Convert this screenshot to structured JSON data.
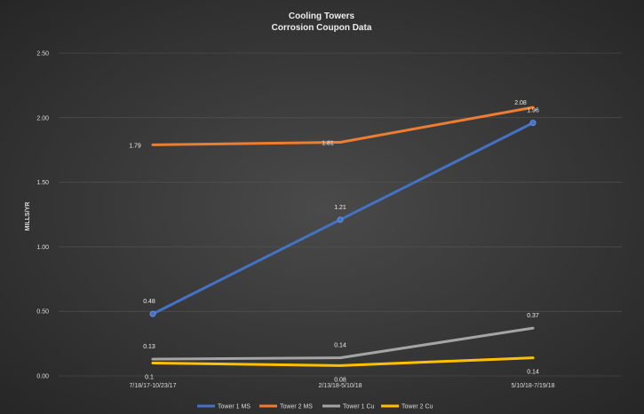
{
  "chart_data": {
    "type": "line",
    "title": "Cooling Towers",
    "subtitle": "Corrosion Coupon Data",
    "xlabel": "",
    "ylabel": "MILLS/YR",
    "categories": [
      "7/18/17-10/23/17",
      "2/13/18-5/10/18",
      "5/10/18-7/19/18"
    ],
    "ylim": [
      0,
      2.5
    ],
    "yticks": [
      "0.00",
      "0.50",
      "1.00",
      "1.50",
      "2.00",
      "2.50"
    ],
    "grid": true,
    "legend_position": "bottom",
    "series": [
      {
        "name": "Tower 1 MS",
        "color": "#4472c4",
        "values": [
          0.48,
          1.21,
          1.96
        ],
        "labels": [
          "0.48",
          "1.21",
          "1.96"
        ],
        "markers": true
      },
      {
        "name": "Tower 2 MS",
        "color": "#ed7d31",
        "values": [
          1.79,
          1.81,
          2.08
        ],
        "labels": [
          "1.79",
          "1.81",
          "2.08"
        ],
        "markers": false
      },
      {
        "name": "Tower 1 Cu",
        "color": "#a5a5a5",
        "values": [
          0.13,
          0.14,
          0.37
        ],
        "labels": [
          "0.13",
          "0.14",
          "0.37"
        ],
        "markers": false
      },
      {
        "name": "Tower 2 Cu",
        "color": "#ffc000",
        "values": [
          0.1,
          0.08,
          0.14
        ],
        "labels": [
          "0.1",
          "0.08",
          "0.14"
        ],
        "markers": false
      }
    ]
  }
}
